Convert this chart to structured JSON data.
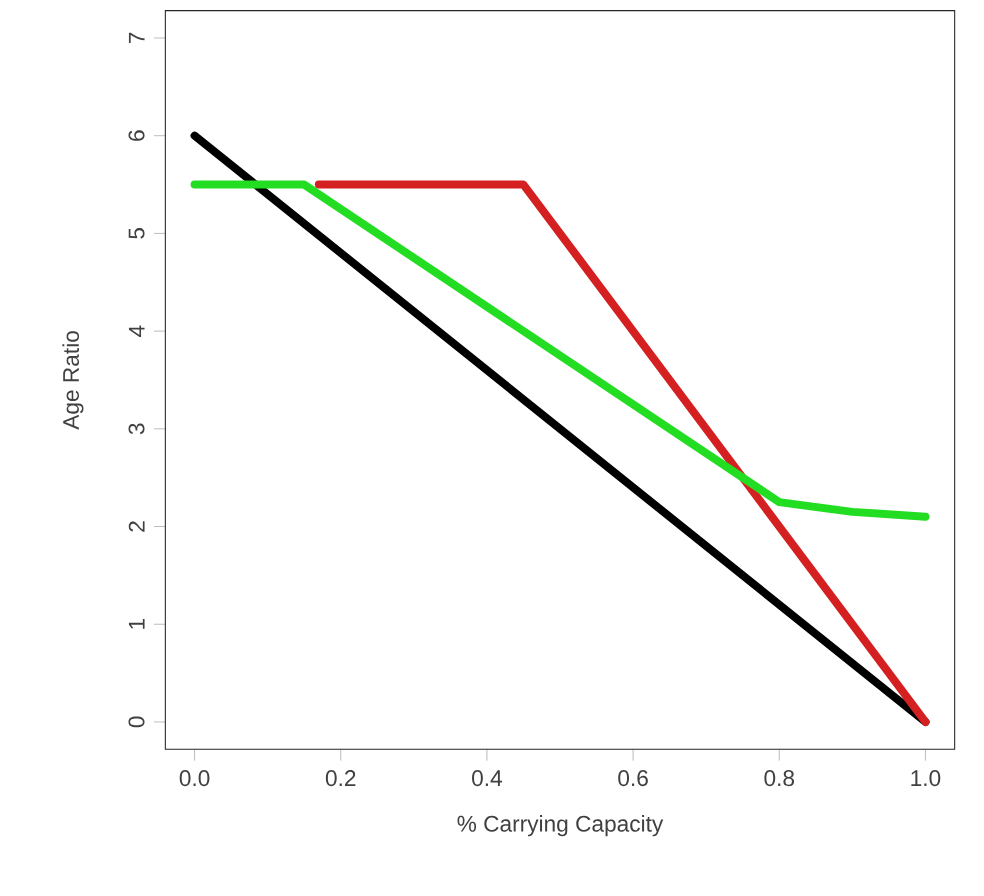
{
  "chart_data": {
    "type": "line",
    "xlabel": "% Carrying Capacity",
    "ylabel": "Age Ratio",
    "xlim": [
      -0.04,
      1.04
    ],
    "ylim": [
      -0.28,
      7.28
    ],
    "xticks": [
      {
        "value": 0,
        "label": "0.0"
      },
      0.2,
      0.4,
      0.6,
      0.8,
      {
        "value": 1,
        "label": "1.0"
      }
    ],
    "yticks": [
      0,
      1,
      2,
      3,
      4,
      5,
      6,
      7
    ],
    "grid": false,
    "marker": "none",
    "line_style": "solid",
    "series": [
      {
        "color": "#000000",
        "x": [
          0,
          1
        ],
        "values": [
          6,
          0
        ]
      },
      {
        "color": "#d42020",
        "x": [
          0.17,
          0.45,
          1
        ],
        "values": [
          5.5,
          5.5,
          0
        ]
      },
      {
        "color": "#22dd22",
        "x": [
          0,
          0.15,
          0.8,
          0.9,
          1
        ],
        "values": [
          5.5,
          5.5,
          2.25,
          2.15,
          2.1
        ]
      }
    ]
  }
}
